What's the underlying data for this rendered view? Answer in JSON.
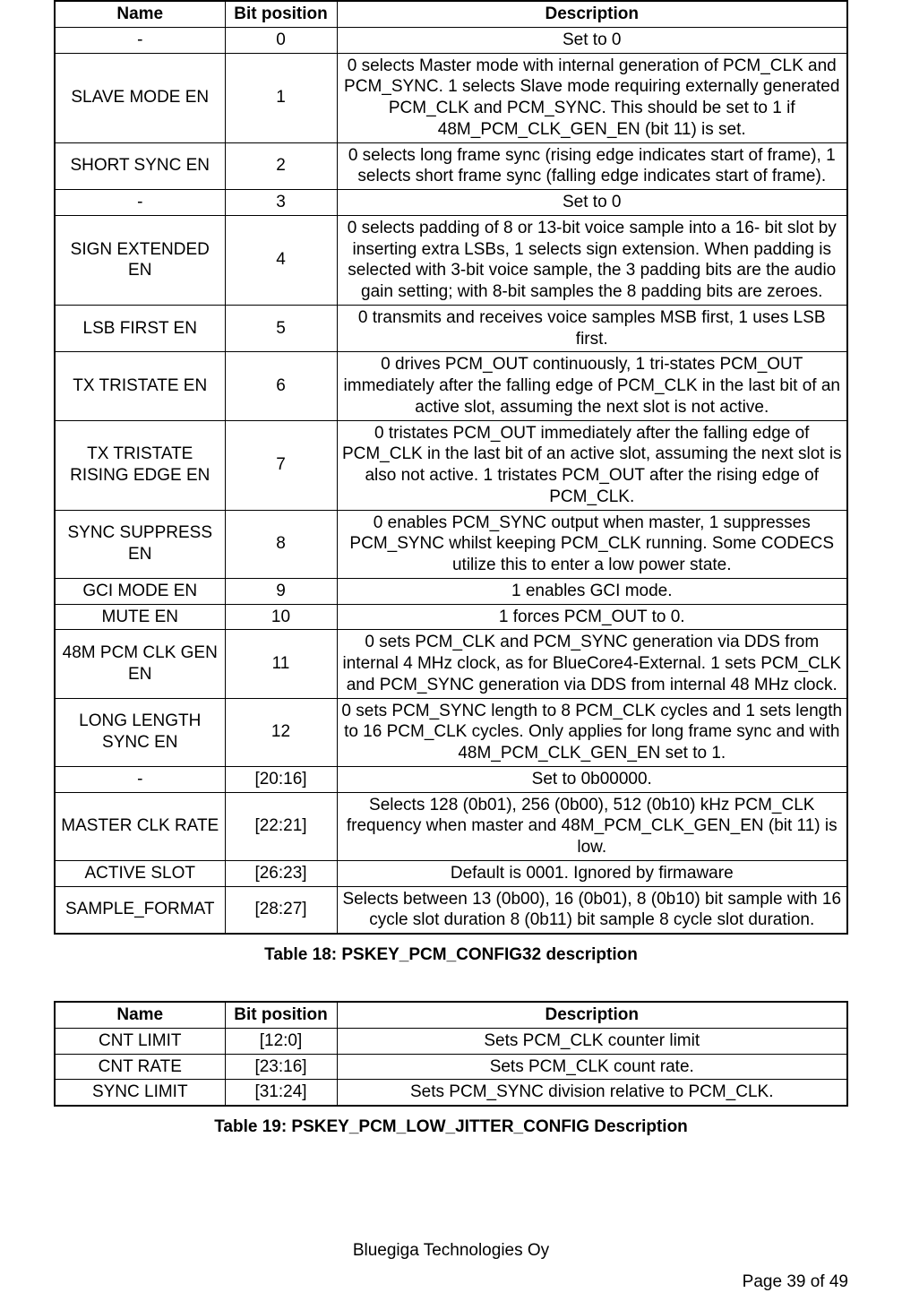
{
  "table1": {
    "headers": {
      "name": "Name",
      "bit": "Bit position",
      "desc": "Description"
    },
    "rows": [
      {
        "name": "-",
        "bit": "0",
        "desc": "Set to 0"
      },
      {
        "name": "SLAVE MODE EN",
        "bit": "1",
        "desc": "0 selects Master mode with internal generation of PCM_CLK and PCM_SYNC. 1 selects Slave mode requiring externally generated PCM_CLK and PCM_SYNC. This should be set to 1 if 48M_PCM_CLK_GEN_EN (bit 11) is set."
      },
      {
        "name": "SHORT SYNC EN",
        "bit": "2",
        "desc": "0 selects long frame sync (rising edge indicates start of frame), 1 selects short frame sync (falling edge indicates start of frame)."
      },
      {
        "name": "-",
        "bit": "3",
        "desc": "Set to 0"
      },
      {
        "name": "SIGN EXTENDED EN",
        "bit": "4",
        "desc": "0 selects padding of 8 or 13-bit voice sample into a 16- bit slot by inserting extra LSBs, 1 selects sign extension. When padding is selected with  3-bit voice sample, the 3 padding bits are the audio gain setting; with 8-bit samples the 8 padding bits are zeroes."
      },
      {
        "name": "LSB FIRST EN",
        "bit": "5",
        "desc": "0 transmits and receives voice samples MSB first, 1 uses LSB first."
      },
      {
        "name": "TX TRISTATE EN",
        "bit": "6",
        "desc": "0 drives PCM_OUT continuously, 1 tri-states PCM_OUT immediately after the falling edge of PCM_CLK in the last bit of an active slot, assuming the next slot is not active."
      },
      {
        "name": "TX TRISTATE RISING EDGE EN",
        "bit": "7",
        "desc": "0 tristates PCM_OUT immediately after the falling edge of PCM_CLK in the last bit of an active slot, assuming the next slot is also not active. 1 tristates PCM_OUT after the rising edge of PCM_CLK."
      },
      {
        "name": "SYNC SUPPRESS EN",
        "bit": "8",
        "desc": "0 enables PCM_SYNC output when master, 1 suppresses PCM_SYNC whilst keeping PCM_CLK running. Some CODECS utilize this to enter a low power state."
      },
      {
        "name": "GCI MODE EN",
        "bit": "9",
        "desc": "1 enables GCI mode."
      },
      {
        "name": "MUTE EN",
        "bit": "10",
        "desc": "1 forces PCM_OUT to 0."
      },
      {
        "name": "48M PCM CLK GEN EN",
        "bit": "11",
        "desc": "0 sets PCM_CLK and PCM_SYNC generation via DDS from internal 4 MHz clock, as for BlueCore4-External. 1 sets PCM_CLK and PCM_SYNC generation via DDS from internal 48 MHz clock."
      },
      {
        "name": "LONG LENGTH SYNC EN",
        "bit": "12",
        "desc": "0 sets PCM_SYNC length to 8 PCM_CLK cycles and 1 sets length to 16 PCM_CLK cycles. Only applies for long frame sync and with 48M_PCM_CLK_GEN_EN set to 1."
      },
      {
        "name": "-",
        "bit": "[20:16]",
        "desc": "Set to 0b00000."
      },
      {
        "name": "MASTER CLK RATE",
        "bit": "[22:21]",
        "desc": "Selects 128 (0b01), 256 (0b00), 512 (0b10) kHz PCM_CLK frequency when master and 48M_PCM_CLK_GEN_EN (bit 11) is low."
      },
      {
        "name": "ACTIVE SLOT",
        "bit": "[26:23]",
        "desc": "Default is 0001. Ignored by firmaware"
      },
      {
        "name": "SAMPLE_FORMAT",
        "bit": "[28:27]",
        "desc": "Selects between 13 (0b00), 16 (0b01), 8 (0b10) bit sample with 16 cycle slot duration 8 (0b11) bit sample 8 cycle slot duration."
      }
    ],
    "caption": "Table 18: PSKEY_PCM_CONFIG32 description"
  },
  "table2": {
    "headers": {
      "name": "Name",
      "bit": "Bit position",
      "desc": "Description"
    },
    "rows": [
      {
        "name": "CNT LIMIT",
        "bit": "[12:0]",
        "desc": "Sets PCM_CLK counter limit"
      },
      {
        "name": "CNT RATE",
        "bit": "[23:16]",
        "desc": "Sets PCM_CLK count rate."
      },
      {
        "name": "SYNC LIMIT",
        "bit": "[31:24]",
        "desc": "Sets PCM_SYNC division relative to PCM_CLK."
      }
    ],
    "caption": "Table 19: PSKEY_PCM_LOW_JITTER_CONFIG Description"
  },
  "footer": {
    "company": "Bluegiga Technologies Oy",
    "page": "Page 39 of 49"
  }
}
